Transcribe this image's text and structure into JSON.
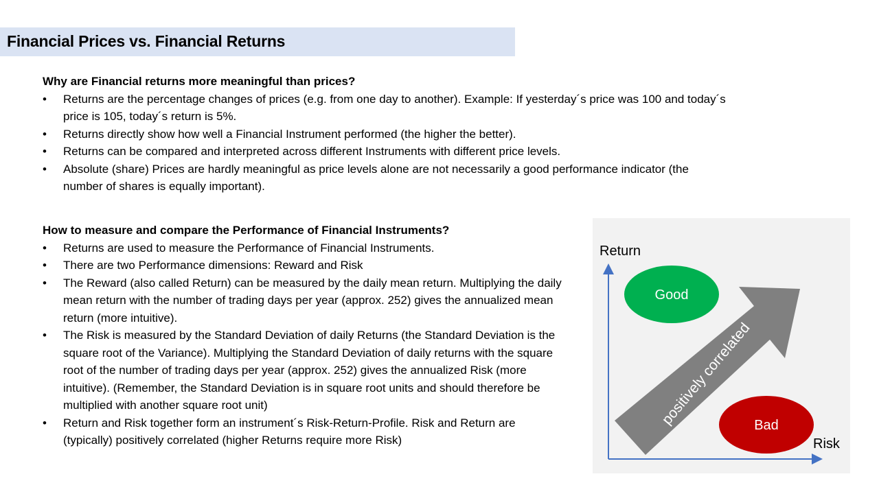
{
  "title": "Financial Prices vs. Financial Returns",
  "section1": {
    "heading": "Why are Financial returns more meaningful than prices?",
    "bullets": [
      "Returns are the percentage changes of prices (e.g. from one day to another). Example: If yesterday´s price was 100 and today´s price is 105, today´s return is 5%.",
      "Returns directly show how well a Financial Instrument performed (the higher the better).",
      "Returns can be compared and interpreted across different Instruments with different price levels.",
      "Absolute (share) Prices are hardly meaningful as price levels alone are not necessarily a good performance indicator (the number of shares is equally important)."
    ]
  },
  "section2": {
    "heading": "How to measure and compare the Performance of Financial Instruments?",
    "bullets": [
      "Returns are used to measure the Performance of Financial Instruments.",
      "There are two Performance dimensions: Reward and Risk",
      "The Reward (also called Return) can be measured by the daily mean return. Multiplying the daily mean return with the number of trading days per year (approx. 252) gives the annualized mean return (more intuitive).",
      "The Risk is measured by the Standard Deviation of daily Returns (the Standard Deviation is the square root of the Variance). Multiplying the Standard Deviation of daily returns with the square root of the number of trading days per year (approx. 252) gives the annualized Risk (more intuitive). (Remember, the Standard Deviation is in square root units and should therefore be multiplied with another square root unit)",
      "Return and Risk together form an instrument´s Risk-Return-Profile. Risk and Return are (typically) positively correlated (higher Returns require more Risk)"
    ]
  },
  "diagram": {
    "y_label": "Return",
    "x_label": "Risk",
    "good_label": "Good",
    "bad_label": "Bad",
    "arrow_label": "positively correlated",
    "colors": {
      "background": "#f2f2f2",
      "axis": "#4472c4",
      "good": "#00b050",
      "bad": "#c00000",
      "arrow": "#808080"
    }
  }
}
